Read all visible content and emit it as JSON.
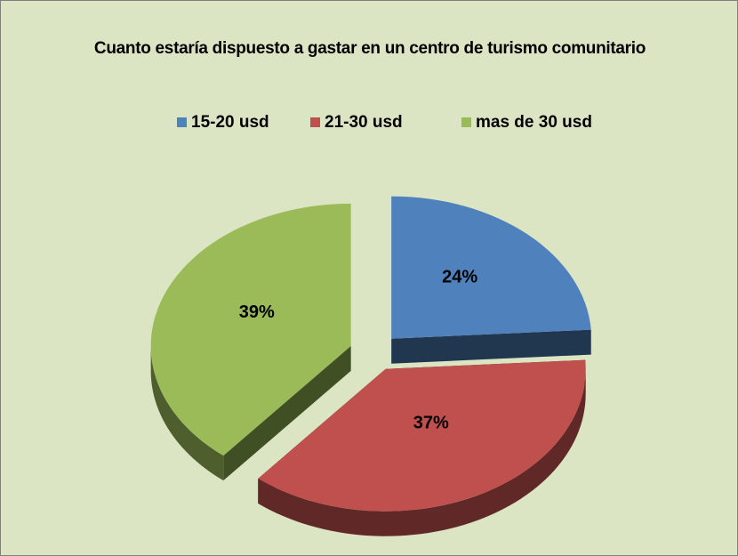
{
  "chart_data": {
    "type": "pie",
    "title": "Cuanto  estaría dispuesto a gastar en un centro de turismo comunitario",
    "categories": [
      "15-20 usd",
      "21-30 usd",
      "mas de 30 usd"
    ],
    "values": [
      24,
      37,
      39
    ],
    "value_labels": [
      "24%",
      "37%",
      "39%"
    ],
    "colors": [
      "#4f81bd",
      "#c0504d",
      "#9bbb59"
    ],
    "legend": "top",
    "exploded": true,
    "three_d": true
  }
}
